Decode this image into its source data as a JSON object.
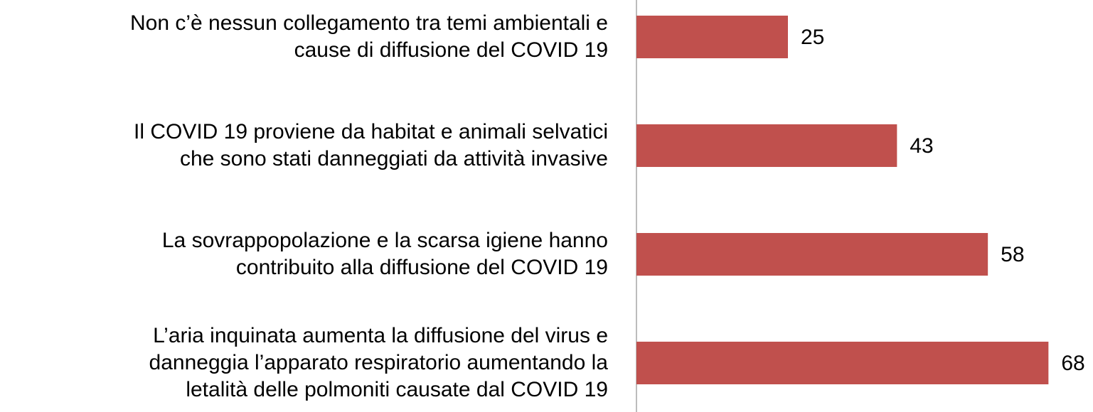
{
  "chart_data": {
    "type": "bar",
    "orientation": "horizontal",
    "categories": [
      "Non c’è nessun collegamento tra temi ambientali e\ncause di diffusione del COVID 19",
      "Il COVID 19 proviene da habitat e animali selvatici\nche sono stati danneggiati da attività invasive",
      "La sovrappopolazione e la scarsa igiene hanno\ncontribuito alla diffusione del COVID 19",
      "L’aria inquinata aumenta la diffusione del virus e\ndanneggia l’apparato respiratorio aumentando la\nletalità delle polmoniti causate dal COVID 19"
    ],
    "values": [
      25,
      43,
      58,
      68
    ],
    "color": "#c0504d",
    "xlim": [
      0,
      75
    ]
  }
}
